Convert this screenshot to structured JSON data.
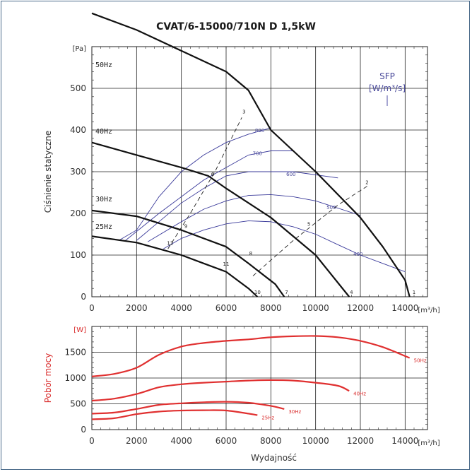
{
  "title": "CVAT/6-15000/710N D 1,5kW",
  "chart_data": [
    {
      "type": "line",
      "xlabel": "",
      "ylabel": "Ciśnienie statyczne",
      "yunit": "[Pa]",
      "xunit": "[m³/h]",
      "xlim": [
        0,
        15000
      ],
      "ylim": [
        0,
        600
      ],
      "xticks": [
        "0",
        "2000",
        "4000",
        "6000",
        "8000",
        "10000",
        "12000",
        "14000"
      ],
      "yticks": [
        "0",
        "100",
        "200",
        "300",
        "400",
        "500"
      ],
      "sfp_label": "SFP",
      "sfp_unit": "[W/m³/s]",
      "fan_curves": [
        {
          "name": "50Hz",
          "points": [
            [
              0,
              680
            ],
            [
              2000,
              640
            ],
            [
              4000,
              590
            ],
            [
              6000,
              540
            ],
            [
              7000,
              495
            ],
            [
              8000,
              400
            ],
            [
              10000,
              300
            ],
            [
              12000,
              190
            ],
            [
              13000,
              120
            ],
            [
              14000,
              40
            ],
            [
              14200,
              0
            ]
          ]
        },
        {
          "name": "40Hz",
          "points": [
            [
              0,
              370
            ],
            [
              2000,
              340
            ],
            [
              4000,
              310
            ],
            [
              5200,
              290
            ],
            [
              6000,
              260
            ],
            [
              8000,
              190
            ],
            [
              10000,
              100
            ],
            [
              11500,
              0
            ]
          ]
        },
        {
          "name": "30Hz",
          "points": [
            [
              0,
              207
            ],
            [
              2000,
              193
            ],
            [
              4000,
              160
            ],
            [
              6000,
              120
            ],
            [
              7000,
              80
            ],
            [
              8200,
              30
            ],
            [
              8600,
              0
            ]
          ]
        },
        {
          "name": "25Hz",
          "points": [
            [
              0,
              145
            ],
            [
              2000,
              130
            ],
            [
              4000,
              100
            ],
            [
              5000,
              80
            ],
            [
              6000,
              60
            ],
            [
              7000,
              20
            ],
            [
              7400,
              0
            ]
          ]
        }
      ],
      "sfp_curves": [
        {
          "name": "800",
          "points": [
            [
              1200,
              135
            ],
            [
              2000,
              160
            ],
            [
              3000,
              240
            ],
            [
              4000,
              300
            ],
            [
              5000,
              340
            ],
            [
              6000,
              370
            ],
            [
              7000,
              390
            ],
            [
              8000,
              405
            ]
          ]
        },
        {
          "name": "700",
          "points": [
            [
              1500,
              135
            ],
            [
              3000,
              200
            ],
            [
              4000,
              240
            ],
            [
              5000,
              280
            ],
            [
              6000,
              310
            ],
            [
              7000,
              340
            ],
            [
              8000,
              350
            ],
            [
              9000,
              350
            ]
          ]
        },
        {
          "name": "600",
          "points": [
            [
              2000,
              135
            ],
            [
              3000,
              180
            ],
            [
              4000,
              225
            ],
            [
              5000,
              260
            ],
            [
              6000,
              290
            ],
            [
              7000,
              300
            ],
            [
              8000,
              300
            ],
            [
              9000,
              300
            ],
            [
              11000,
              285
            ]
          ]
        },
        {
          "name": "500",
          "points": [
            [
              2500,
              132
            ],
            [
              4000,
              180
            ],
            [
              5000,
              210
            ],
            [
              6000,
              230
            ],
            [
              7000,
              243
            ],
            [
              8000,
              245
            ],
            [
              9000,
              240
            ],
            [
              10000,
              230
            ],
            [
              12000,
              195
            ]
          ]
        },
        {
          "name": "400",
          "points": [
            [
              3200,
              115
            ],
            [
              4000,
              140
            ],
            [
              5000,
              160
            ],
            [
              6000,
              175
            ],
            [
              7000,
              182
            ],
            [
              8000,
              180
            ],
            [
              9000,
              168
            ],
            [
              10000,
              150
            ],
            [
              11000,
              125
            ],
            [
              12000,
              100
            ],
            [
              13000,
              80
            ],
            [
              14000,
              60
            ]
          ]
        }
      ],
      "system_lines": [
        {
          "points": [
            [
              3400,
              115
            ],
            [
              4400,
              200
            ],
            [
              5500,
              300
            ],
            [
              6700,
              430
            ]
          ]
        },
        {
          "points": [
            [
              7200,
              50
            ],
            [
              9000,
              135
            ],
            [
              11000,
              220
            ],
            [
              12300,
              265
            ]
          ]
        }
      ],
      "point_labels": [
        {
          "label": "1",
          "x": 14400,
          "y": 0
        },
        {
          "label": "2",
          "x": 12300,
          "y": 270
        },
        {
          "label": "3",
          "x": 6800,
          "y": 440
        },
        {
          "label": "4",
          "x": 11600,
          "y": 0
        },
        {
          "label": "5",
          "x": 9700,
          "y": 170
        },
        {
          "label": "6",
          "x": 5400,
          "y": 290
        },
        {
          "label": "7",
          "x": 8700,
          "y": 0
        },
        {
          "label": "8",
          "x": 7100,
          "y": 100
        },
        {
          "label": "9",
          "x": 4200,
          "y": 165
        },
        {
          "label": "10",
          "x": 7400,
          "y": 0
        },
        {
          "label": "11",
          "x": 6000,
          "y": 75
        },
        {
          "label": "12",
          "x": 3500,
          "y": 125
        }
      ]
    },
    {
      "type": "line",
      "xlabel": "Wydajność",
      "ylabel": "Pobór mocy",
      "yunit": "[W]",
      "xunit": "[m³/h]",
      "xlim": [
        0,
        15000
      ],
      "ylim": [
        0,
        2000
      ],
      "xticks": [
        "0",
        "2000",
        "4000",
        "6000",
        "8000",
        "10000",
        "12000",
        "14000"
      ],
      "yticks": [
        "0",
        "500",
        "1000",
        "1500"
      ],
      "color": "#e03030",
      "series": [
        {
          "name": "50Hz",
          "points": [
            [
              0,
              1030
            ],
            [
              1000,
              1080
            ],
            [
              2000,
              1200
            ],
            [
              3000,
              1450
            ],
            [
              4000,
              1610
            ],
            [
              5000,
              1680
            ],
            [
              6000,
              1720
            ],
            [
              7000,
              1750
            ],
            [
              8000,
              1790
            ],
            [
              9000,
              1810
            ],
            [
              10000,
              1815
            ],
            [
              11000,
              1790
            ],
            [
              12000,
              1720
            ],
            [
              13000,
              1600
            ],
            [
              14200,
              1390
            ]
          ]
        },
        {
          "name": "40Hz",
          "points": [
            [
              0,
              560
            ],
            [
              1000,
              600
            ],
            [
              2000,
              690
            ],
            [
              3000,
              820
            ],
            [
              4000,
              880
            ],
            [
              5000,
              910
            ],
            [
              6000,
              930
            ],
            [
              7000,
              950
            ],
            [
              8000,
              960
            ],
            [
              9000,
              950
            ],
            [
              10000,
              910
            ],
            [
              11000,
              850
            ],
            [
              11500,
              750
            ]
          ]
        },
        {
          "name": "30Hz",
          "points": [
            [
              0,
              310
            ],
            [
              1000,
              330
            ],
            [
              2000,
              400
            ],
            [
              3000,
              480
            ],
            [
              4000,
              510
            ],
            [
              5000,
              530
            ],
            [
              6000,
              540
            ],
            [
              7000,
              520
            ],
            [
              8000,
              460
            ],
            [
              8600,
              400
            ]
          ]
        },
        {
          "name": "25Hz",
          "points": [
            [
              0,
              200
            ],
            [
              1000,
              220
            ],
            [
              2000,
              300
            ],
            [
              3000,
              350
            ],
            [
              4000,
              370
            ],
            [
              5000,
              375
            ],
            [
              6000,
              370
            ],
            [
              7000,
              310
            ],
            [
              7400,
              280
            ]
          ]
        }
      ]
    }
  ],
  "labels": {
    "top_unit_y": "[Pa]",
    "bottom_unit_y": "[W]",
    "x_unit": "[m³/h]",
    "sfp": "SFP",
    "sfp_unit": "[W/m³/s]"
  }
}
